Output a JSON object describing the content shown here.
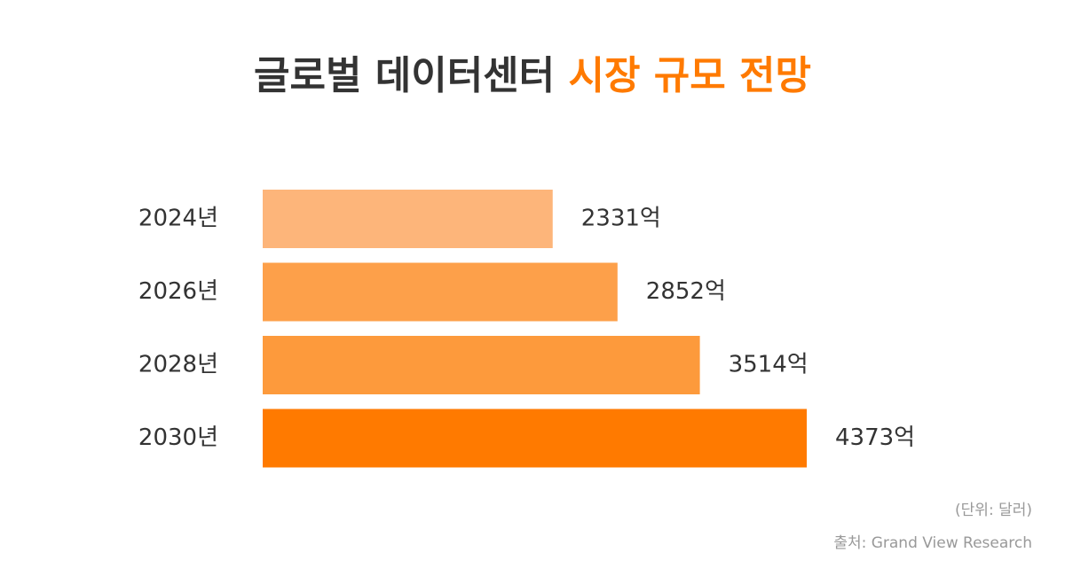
{
  "chart_data": {
    "type": "bar",
    "orientation": "horizontal",
    "title": [
      "글로벌 데이터센터",
      "시장 규모 전망"
    ],
    "title_colors": [
      "#333333",
      "#ff7a00"
    ],
    "categories": [
      "2024년",
      "2026년",
      "2028년",
      "2030년"
    ],
    "values": [
      2331,
      2852,
      3514,
      4373
    ],
    "value_labels": [
      "2331억",
      "2852억",
      "3514억",
      "4373억"
    ],
    "colors": [
      "#fdb57a",
      "#fda04a",
      "#fd9a3c",
      "#ff7a00"
    ],
    "unit_note": "(단위: 달러)",
    "source": "출처: Grand View Research"
  }
}
